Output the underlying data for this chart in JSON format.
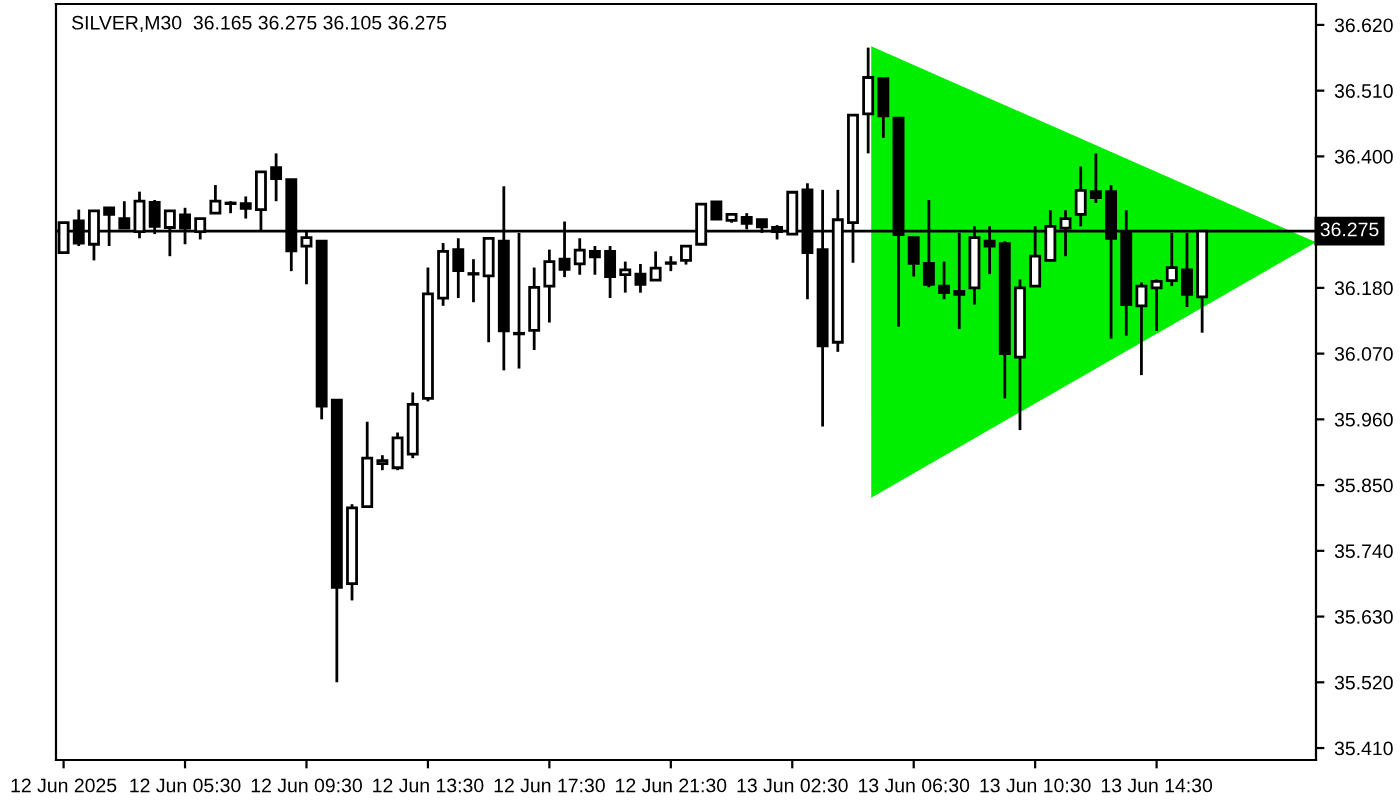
{
  "chart_data": {
    "type": "candlestick",
    "title": "SILVER,M30  36.165 36.275 36.105 36.275",
    "categories": [
      "12 Jun 2025",
      null,
      null,
      null,
      null,
      null,
      null,
      null,
      "12 Jun 05:30",
      null,
      null,
      null,
      null,
      null,
      null,
      null,
      "12 Jun 09:30",
      null,
      null,
      null,
      null,
      null,
      null,
      null,
      "12 Jun 13:30",
      null,
      null,
      null,
      null,
      null,
      null,
      null,
      "12 Jun 17:30",
      null,
      null,
      null,
      null,
      null,
      null,
      null,
      "12 Jun 21:30",
      null,
      null,
      null,
      null,
      null,
      null,
      null,
      "13 Jun 02:30",
      null,
      null,
      null,
      null,
      null,
      null,
      null,
      "13 Jun 06:30",
      null,
      null,
      null,
      null,
      null,
      null,
      null,
      "13 Jun 10:30",
      null,
      null,
      null,
      null,
      null,
      null,
      null,
      "13 Jun 14:30",
      null,
      null,
      null,
      null,
      null,
      null,
      null,
      null,
      null,
      null
    ],
    "ohlc": [
      [
        36.239,
        36.289,
        36.239,
        36.289
      ],
      [
        36.292,
        36.311,
        36.25,
        36.255
      ],
      [
        36.253,
        36.309,
        36.226,
        36.309
      ],
      [
        36.314,
        36.314,
        36.25,
        36.303
      ],
      [
        36.296,
        36.325,
        36.28,
        36.28
      ],
      [
        36.274,
        36.341,
        36.263,
        36.325
      ],
      [
        36.323,
        36.327,
        36.27,
        36.283
      ],
      [
        36.281,
        36.309,
        36.233,
        36.309
      ],
      [
        36.302,
        36.314,
        36.253,
        36.28
      ],
      [
        36.274,
        36.296,
        36.261,
        36.296
      ],
      [
        36.305,
        36.352,
        36.305,
        36.325
      ],
      [
        36.321,
        36.325,
        36.305,
        36.322
      ],
      [
        36.321,
        36.333,
        36.296,
        36.313
      ],
      [
        36.311,
        36.374,
        36.274,
        36.374
      ],
      [
        36.381,
        36.405,
        36.325,
        36.363
      ],
      [
        36.361,
        36.361,
        36.208,
        36.242
      ],
      [
        36.25,
        36.274,
        36.186,
        36.264
      ],
      [
        36.258,
        36.258,
        35.96,
        35.982
      ],
      [
        35.992,
        35.992,
        35.52,
        35.679
      ],
      [
        35.685,
        35.818,
        35.657,
        35.812
      ],
      [
        35.814,
        35.956,
        35.814,
        35.895
      ],
      [
        35.886,
        35.9,
        35.875,
        35.891
      ],
      [
        35.879,
        35.938,
        35.875,
        35.929
      ],
      [
        35.902,
        36.005,
        35.895,
        35.985
      ],
      [
        35.995,
        36.214,
        35.99,
        36.17
      ],
      [
        36.163,
        36.255,
        36.15,
        36.241
      ],
      [
        36.244,
        36.263,
        36.163,
        36.209
      ],
      [
        36.204,
        36.228,
        36.156,
        36.203
      ],
      [
        36.2,
        36.263,
        36.089,
        36.263
      ],
      [
        36.258,
        36.35,
        36.042,
        36.108
      ],
      [
        36.104,
        36.272,
        36.045,
        36.103
      ],
      [
        36.109,
        36.214,
        36.076,
        36.181
      ],
      [
        36.183,
        36.244,
        36.122,
        36.224
      ],
      [
        36.228,
        36.291,
        36.198,
        36.211
      ],
      [
        36.22,
        36.263,
        36.202,
        36.243
      ],
      [
        36.241,
        36.25,
        36.202,
        36.232
      ],
      [
        36.241,
        36.25,
        36.163,
        36.199
      ],
      [
        36.202,
        36.224,
        36.172,
        36.21
      ],
      [
        36.203,
        36.22,
        36.172,
        36.186
      ],
      [
        36.193,
        36.241,
        36.193,
        36.213
      ],
      [
        36.221,
        36.233,
        36.208,
        36.222
      ],
      [
        36.226,
        36.25,
        36.219,
        36.25
      ],
      [
        36.253,
        36.32,
        36.253,
        36.32
      ],
      [
        36.324,
        36.324,
        36.295,
        36.295
      ],
      [
        36.293,
        36.303,
        36.289,
        36.303
      ],
      [
        36.298,
        36.305,
        36.278,
        36.288
      ],
      [
        36.294,
        36.294,
        36.272,
        36.282
      ],
      [
        36.281,
        36.285,
        36.261,
        36.274
      ],
      [
        36.27,
        36.34,
        36.27,
        36.34
      ],
      [
        36.344,
        36.355,
        36.161,
        36.239
      ],
      [
        36.244,
        36.344,
        35.948,
        36.083
      ],
      [
        36.089,
        36.344,
        36.073,
        36.294
      ],
      [
        36.289,
        36.469,
        36.222,
        36.469
      ],
      [
        36.471,
        36.582,
        36.405,
        36.532
      ],
      [
        36.53,
        36.53,
        36.431,
        36.468
      ],
      [
        36.464,
        36.464,
        36.115,
        36.269
      ],
      [
        36.264,
        36.264,
        36.199,
        36.221
      ],
      [
        36.221,
        36.327,
        36.181,
        36.186
      ],
      [
        36.183,
        36.224,
        36.161,
        36.172
      ],
      [
        36.174,
        36.272,
        36.111,
        36.169
      ],
      [
        36.18,
        36.283,
        36.152,
        36.264
      ],
      [
        36.258,
        36.283,
        36.203,
        36.25
      ],
      [
        36.254,
        36.258,
        35.995,
        36.07
      ],
      [
        36.064,
        36.194,
        35.942,
        36.18
      ],
      [
        36.183,
        36.283,
        36.183,
        36.233
      ],
      [
        36.226,
        36.31,
        36.226,
        36.283
      ],
      [
        36.28,
        36.31,
        36.233,
        36.296
      ],
      [
        36.303,
        36.383,
        36.283,
        36.343
      ],
      [
        36.341,
        36.405,
        36.322,
        36.331
      ],
      [
        36.341,
        36.352,
        36.095,
        36.263
      ],
      [
        36.272,
        36.31,
        36.1,
        36.152
      ],
      [
        36.15,
        36.189,
        36.034,
        36.183
      ],
      [
        36.18,
        36.194,
        36.108,
        36.191
      ],
      [
        36.192,
        36.272,
        36.183,
        36.214
      ],
      [
        36.21,
        36.272,
        36.148,
        36.169
      ],
      [
        36.165,
        36.275,
        36.105,
        36.275
      ],
      null,
      null,
      null,
      null,
      null,
      null,
      null
    ],
    "color": "#000000",
    "ylim": [
      35.39,
      36.655
    ],
    "yticks": [
      {
        "value": 35.41,
        "label": "35.410"
      },
      {
        "value": 35.52,
        "label": "35.520"
      },
      {
        "value": 35.63,
        "label": "35.630"
      },
      {
        "value": 35.74,
        "label": "35.740"
      },
      {
        "value": 35.85,
        "label": "35.850"
      },
      {
        "value": 35.96,
        "label": "35.960"
      },
      {
        "value": 36.07,
        "label": "36.070"
      },
      {
        "value": 36.18,
        "label": "36.180"
      },
      {
        "value": 36.4,
        "label": "36.400"
      },
      {
        "value": 36.51,
        "label": "36.510"
      },
      {
        "value": 36.62,
        "label": "36.620"
      }
    ],
    "ref_lines": [
      {
        "axis": "y",
        "value": 36.275,
        "label": "36.275",
        "color": "#000000"
      }
    ],
    "grid": false,
    "legend": false
  }
}
